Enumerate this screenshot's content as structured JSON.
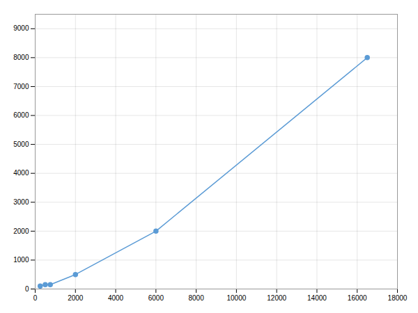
{
  "chart_data": {
    "type": "line",
    "x": [
      250,
      500,
      750,
      2000,
      6000,
      16500
    ],
    "values": [
      100,
      150,
      150,
      500,
      2000,
      8000
    ],
    "color": "#5B9BD5",
    "marker": "circle",
    "xlim": [
      0,
      18000
    ],
    "ylim": [
      0,
      9500
    ],
    "xticks": [
      0,
      2000,
      4000,
      6000,
      8000,
      10000,
      12000,
      14000,
      16000,
      18000
    ],
    "yticks": [
      0,
      1000,
      2000,
      3000,
      4000,
      5000,
      6000,
      7000,
      8000,
      9000
    ],
    "grid": true
  }
}
